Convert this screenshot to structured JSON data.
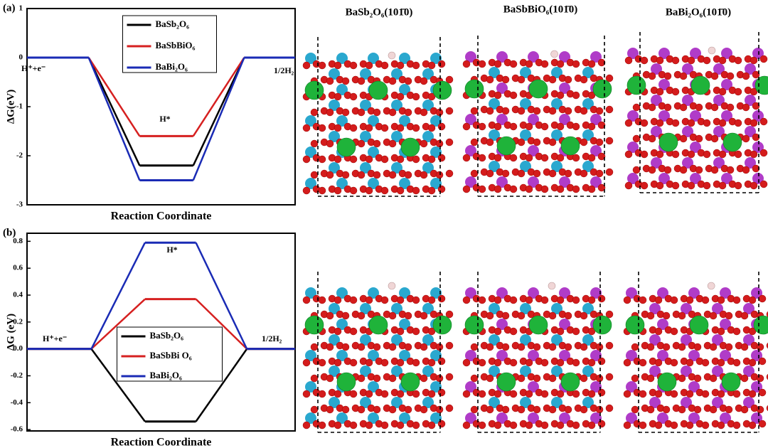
{
  "figure": {
    "panel_labels": [
      "(a)",
      "(b)"
    ],
    "structure_titles": [
      "BaSb₂O₆(101̄0)",
      "BaSbBiO₆(101̄0)",
      "BaBi₂O₆(101̄0)"
    ]
  },
  "chart_data": [
    {
      "type": "energy-levels",
      "xlabel": "Reaction Coordinate",
      "ylabel": "ΔG(eV)",
      "categories": [
        "H⁺+e⁻",
        "H*",
        "1/2H₂"
      ],
      "series": [
        {
          "name": "BaSb₂O₆",
          "color": "#000000",
          "values": [
            0,
            -2.2,
            0
          ]
        },
        {
          "name": "BaSbBiO₆",
          "color": "#d62020",
          "values": [
            0,
            -1.6,
            0
          ]
        },
        {
          "name": "BaBi₂O₆",
          "color": "#1a2bb5",
          "values": [
            0,
            -2.5,
            0
          ]
        }
      ],
      "ylim": [
        -3,
        1
      ],
      "yticks": [
        -3,
        -2,
        -1,
        0,
        1
      ],
      "legend": "upper center"
    },
    {
      "type": "energy-levels",
      "xlabel": "Reaction Coordinate",
      "ylabel": "ΔG (eV)",
      "categories": [
        "H⁺+e⁻",
        "H*",
        "1/2H₂"
      ],
      "series": [
        {
          "name": "BaSb₂O₆",
          "color": "#000000",
          "values": [
            0,
            -0.54,
            0
          ]
        },
        {
          "name": "BaSbBi O₆",
          "color": "#d62020",
          "values": [
            0,
            0.37,
            0
          ]
        },
        {
          "name": "BaBi₂O₆",
          "color": "#1a2bb5",
          "values": [
            0,
            0.79,
            0
          ]
        }
      ],
      "ylim": [
        -0.61,
        0.86
      ],
      "yticks": [
        -0.6,
        -0.4,
        -0.2,
        {
          "value": 0,
          "label": "0.0"
        },
        0.2,
        0.4,
        0.6,
        0.8
      ],
      "legend": "lower center"
    }
  ]
}
